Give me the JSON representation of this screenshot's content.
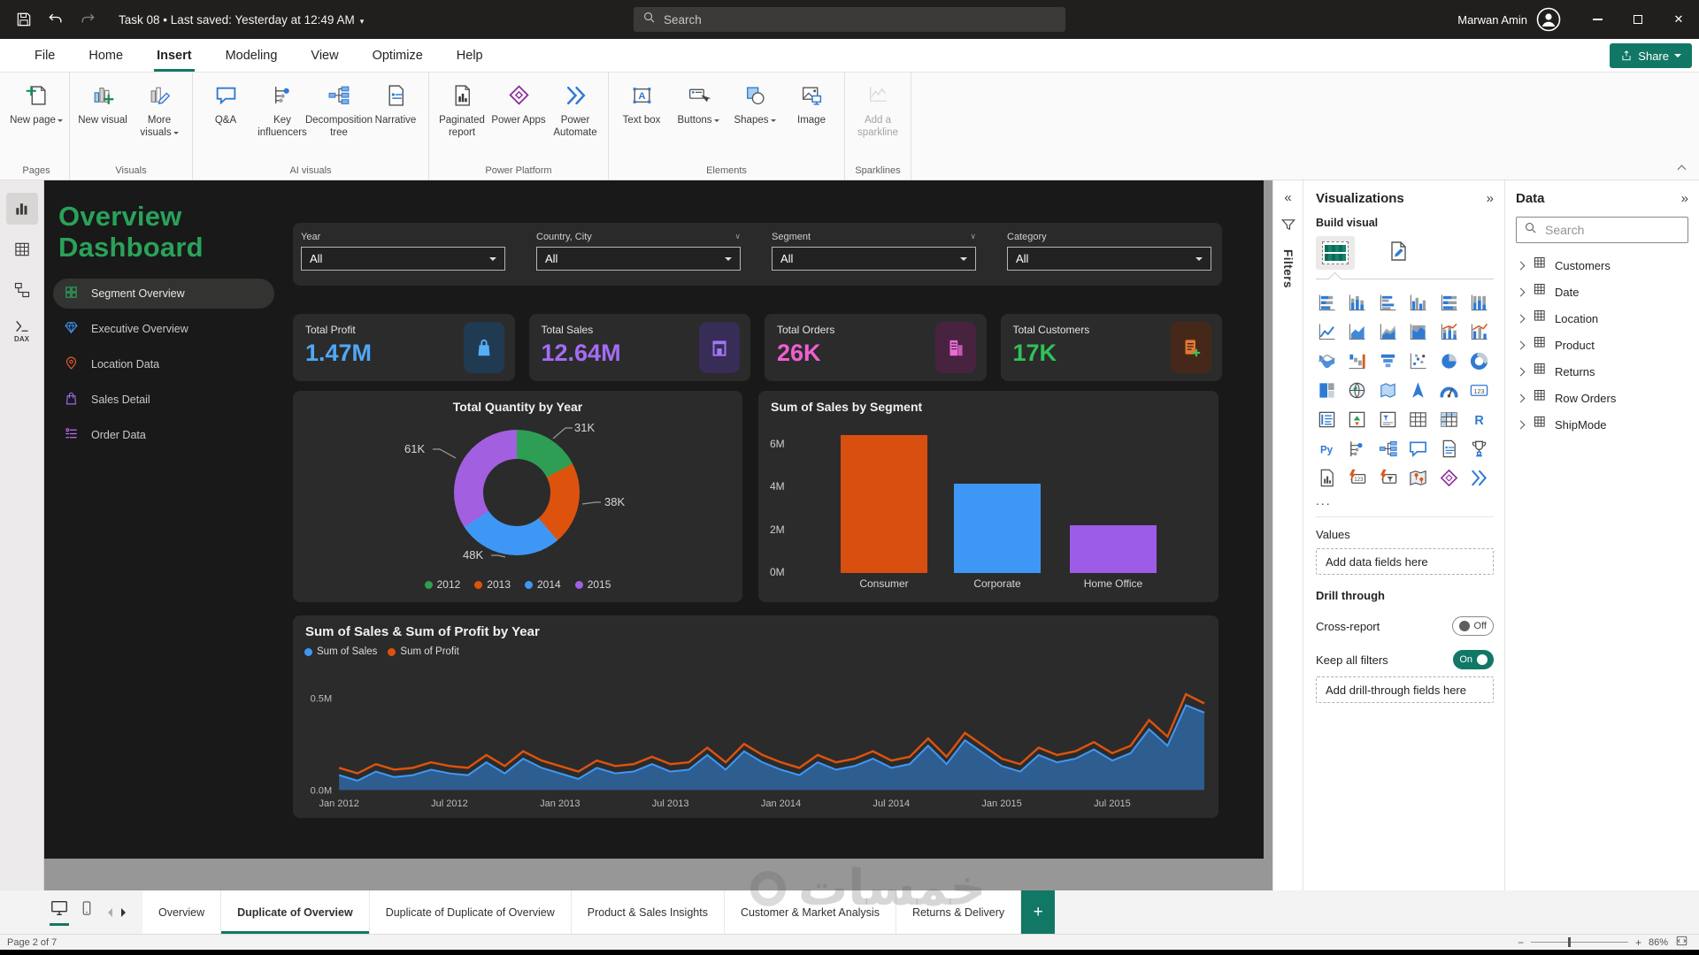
{
  "titlebar": {
    "doc_title": "Task 08",
    "last_saved": "Last saved: Yesterday at 12:49 AM",
    "search_placeholder": "Search",
    "user_name": "Marwan Amin"
  },
  "menubar": {
    "items": [
      "File",
      "Home",
      "Insert",
      "Modeling",
      "View",
      "Optimize",
      "Help"
    ],
    "active_item": "Insert",
    "share_label": "Share"
  },
  "ribbon": {
    "groups": [
      {
        "label": "Pages",
        "buttons": [
          {
            "label": "New page",
            "icon": "new-page",
            "chevron": true
          }
        ]
      },
      {
        "label": "Visuals",
        "buttons": [
          {
            "label": "New visual",
            "icon": "new-visual"
          },
          {
            "label": "More visuals",
            "icon": "more-visuals",
            "chevron": true
          }
        ]
      },
      {
        "label": "AI visuals",
        "buttons": [
          {
            "label": "Q&A",
            "icon": "qa"
          },
          {
            "label": "Key influencers",
            "icon": "key-influencers"
          },
          {
            "label": "Decomposition tree",
            "icon": "decomposition-tree"
          },
          {
            "label": "Narrative",
            "icon": "narrative"
          }
        ]
      },
      {
        "label": "Power Platform",
        "buttons": [
          {
            "label": "Paginated report",
            "icon": "paginated-report"
          },
          {
            "label": "Power Apps",
            "icon": "power-apps"
          },
          {
            "label": "Power Automate",
            "icon": "power-automate"
          }
        ]
      },
      {
        "label": "Elements",
        "buttons": [
          {
            "label": "Text box",
            "icon": "text-box"
          },
          {
            "label": "Buttons",
            "icon": "buttons",
            "chevron": true
          },
          {
            "label": "Shapes",
            "icon": "shapes",
            "chevron": true
          },
          {
            "label": "Image",
            "icon": "image"
          }
        ]
      },
      {
        "label": "Sparklines",
        "buttons": [
          {
            "label": "Add a sparkline",
            "icon": "sparkline",
            "disabled": true
          }
        ]
      }
    ]
  },
  "app_sidebar": {
    "views": [
      {
        "name": "report-view",
        "active": true
      },
      {
        "name": "table-view"
      },
      {
        "name": "model-view"
      },
      {
        "name": "dax-query-view",
        "label": "DAX"
      }
    ]
  },
  "report": {
    "title_lines": [
      "Overview",
      "Dashboard"
    ],
    "nav_items": [
      {
        "label": "Segment Overview",
        "icon": "grid-icon",
        "color": "#2aa25a",
        "active": true
      },
      {
        "label": "Executive Overview",
        "icon": "diamond-icon",
        "color": "#3d96f4",
        "active": false
      },
      {
        "label": "Location Data",
        "icon": "pin-icon",
        "color": "#d95a2b",
        "active": false
      },
      {
        "label": "Sales Detail",
        "icon": "bag-icon",
        "color": "#9d6cf0",
        "active": false
      },
      {
        "label": "Order Data",
        "icon": "list-icon",
        "color": "#c26cf0",
        "active": false
      }
    ],
    "slicers": [
      {
        "label": "Year",
        "value": "All",
        "header_chevron": false
      },
      {
        "label": "Country, City",
        "value": "All",
        "header_chevron": true
      },
      {
        "label": "Segment",
        "value": "All",
        "header_chevron": true
      },
      {
        "label": "Category",
        "value": "All",
        "header_chevron": false
      }
    ],
    "kpis": [
      {
        "label": "Total Profit",
        "value": "1.47M",
        "value_color": "#4fa8f8",
        "icon": "shopping-bag-icon",
        "icon_color": "#56aef5",
        "icon_bg": "#203a52"
      },
      {
        "label": "Total Sales",
        "value": "12.64M",
        "value_color": "#a46cf5",
        "icon": "storefront-icon",
        "icon_color": "#a076f5",
        "icon_bg": "#382d56"
      },
      {
        "label": "Total Orders",
        "value": "26K",
        "value_color": "#ee5fd2",
        "icon": "building-icon",
        "icon_color": "#ef6ad8",
        "icon_bg": "#472340"
      },
      {
        "label": "Total Customers",
        "value": "17K",
        "value_color": "#2fc258",
        "icon": "customer-list-icon",
        "icon_color": "#e8772e",
        "icon_bg": "#46281a"
      }
    ]
  },
  "chart_data": [
    {
      "type": "donut",
      "title": "Total Quantity by Year",
      "categories": [
        "2012",
        "2013",
        "2014",
        "2015"
      ],
      "values": [
        31000,
        38000,
        48000,
        61000
      ],
      "data_labels": [
        "31K",
        "38K",
        "48K",
        "61K"
      ],
      "colors": [
        "#2e9e54",
        "#dd530e",
        "#3f97f5",
        "#a25fe0"
      ],
      "legend_position": "bottom"
    },
    {
      "type": "bar",
      "title": "Sum of Sales by Segment",
      "categories": [
        "Consumer",
        "Corporate",
        "Home Office"
      ],
      "values": [
        6450000,
        4200000,
        2250000
      ],
      "colors": [
        "#d94f10",
        "#3f97f5",
        "#9d5ce8"
      ],
      "ylabel_ticks": [
        "0M",
        "2M",
        "4M",
        "6M"
      ],
      "ylim": [
        0,
        6900000
      ],
      "grid": false
    },
    {
      "type": "area",
      "title": "Sum of Sales & Sum of Profit by Year",
      "x_ticks": [
        "Jan 2012",
        "Jul 2012",
        "Jan 2013",
        "Jul 2013",
        "Jan 2014",
        "Jul 2014",
        "Jan 2015",
        "Jul 2015"
      ],
      "y_ticks": [
        "0.0M",
        "0.5M"
      ],
      "ylim_m": [
        0,
        0.62
      ],
      "legend_position": "top-left",
      "series": [
        {
          "name": "Sum of Sales",
          "color": "#3f97f5",
          "fill": "#2e6096",
          "values_m": [
            0.08,
            0.05,
            0.1,
            0.07,
            0.08,
            0.11,
            0.09,
            0.08,
            0.15,
            0.09,
            0.17,
            0.12,
            0.09,
            0.06,
            0.12,
            0.09,
            0.1,
            0.14,
            0.1,
            0.11,
            0.19,
            0.11,
            0.21,
            0.15,
            0.11,
            0.08,
            0.15,
            0.11,
            0.13,
            0.17,
            0.12,
            0.14,
            0.24,
            0.14,
            0.27,
            0.2,
            0.13,
            0.1,
            0.19,
            0.15,
            0.17,
            0.22,
            0.16,
            0.2,
            0.33,
            0.24,
            0.46,
            0.42
          ]
        },
        {
          "name": "Sum of Profit",
          "color": "#dd530e",
          "values_m": [
            0.12,
            0.09,
            0.14,
            0.11,
            0.12,
            0.15,
            0.13,
            0.12,
            0.19,
            0.13,
            0.21,
            0.16,
            0.13,
            0.1,
            0.16,
            0.13,
            0.14,
            0.18,
            0.14,
            0.15,
            0.23,
            0.15,
            0.25,
            0.19,
            0.15,
            0.12,
            0.19,
            0.15,
            0.17,
            0.21,
            0.16,
            0.18,
            0.28,
            0.18,
            0.31,
            0.24,
            0.17,
            0.14,
            0.23,
            0.19,
            0.21,
            0.26,
            0.2,
            0.24,
            0.38,
            0.29,
            0.52,
            0.47
          ]
        }
      ]
    }
  ],
  "filters_pane": {
    "label": "Filters"
  },
  "viz_pane": {
    "title": "Visualizations",
    "build_visual_label": "Build visual",
    "icons": [
      "stacked-bar",
      "stacked-column",
      "clustered-bar",
      "clustered-column",
      "hundred-stacked-bar",
      "hundred-stacked-column",
      "line",
      "area",
      "stacked-area",
      "hundred-stacked-area",
      "line-stacked-column",
      "line-clustered-column",
      "ribbon",
      "waterfall",
      "funnel",
      "scatter",
      "pie",
      "donut",
      "treemap",
      "map",
      "filled-map",
      "azure-map",
      "gauge",
      "card",
      "multi-row-card",
      "kpi",
      "slicer",
      "table",
      "matrix",
      "r-script",
      "python",
      "key-influencers-small",
      "decomposition-tree-small",
      "qa-small",
      "narrative-small",
      "goals",
      "paginated-report-small",
      "quick-card",
      "quick-slicer",
      "arcgis-map",
      "power-apps-small",
      "power-automate-small"
    ],
    "more_label": "...",
    "values_label": "Values",
    "values_placeholder": "Add data fields here",
    "drill_through_label": "Drill through",
    "cross_report_label": "Cross-report",
    "cross_report_state": "Off",
    "keep_filters_label": "Keep all filters",
    "keep_filters_state": "On",
    "drill_placeholder": "Add drill-through fields here"
  },
  "data_pane": {
    "title": "Data",
    "search_placeholder": "Search",
    "tables": [
      "Customers",
      "Date",
      "Location",
      "Product",
      "Returns",
      "Row Orders",
      "ShipMode"
    ]
  },
  "page_tabs": {
    "tabs": [
      "Overview",
      "Duplicate of Overview",
      "Duplicate of Duplicate of Overview",
      "Product & Sales Insights",
      "Customer & Market Analysis",
      "Returns & Delivery"
    ],
    "active": "Duplicate of Overview"
  },
  "status_bar": {
    "page_indicator": "Page 2 of 7",
    "zoom_percent": "86%"
  },
  "watermark": "خمسات"
}
